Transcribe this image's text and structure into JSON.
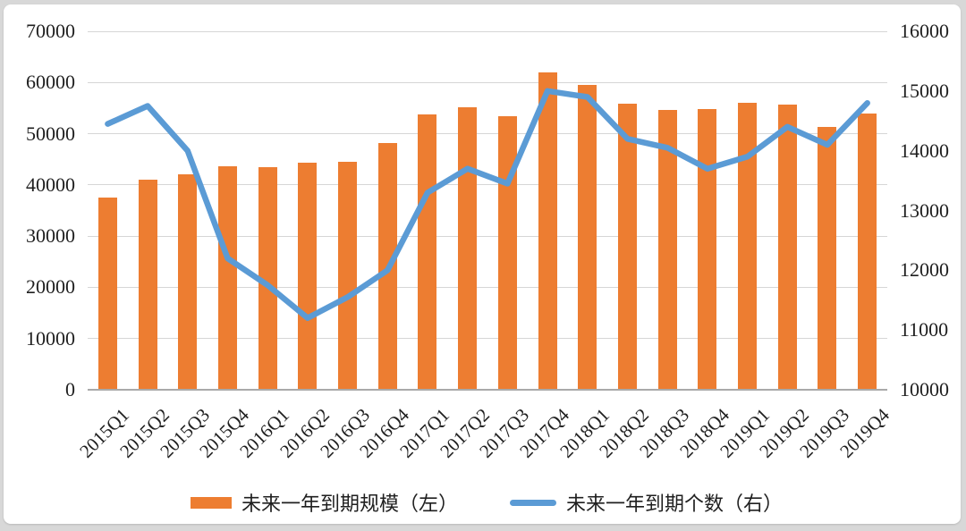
{
  "chart_data": {
    "type": "bar",
    "subtype": "combo-bar-line-dual-axis",
    "title": "",
    "categories": [
      "2015Q1",
      "2015Q2",
      "2015Q3",
      "2015Q4",
      "2016Q1",
      "2016Q2",
      "2016Q3",
      "2016Q4",
      "2017Q1",
      "2017Q2",
      "2017Q3",
      "2017Q4",
      "2018Q1",
      "2018Q2",
      "2018Q3",
      "2018Q4",
      "2019Q1",
      "2019Q2",
      "2019Q3",
      "2019Q4"
    ],
    "series": [
      {
        "name": "未来一年到期规模（左）",
        "type": "bar",
        "axis": "left",
        "values": [
          37500,
          41000,
          42100,
          43600,
          43400,
          44300,
          44600,
          48200,
          53700,
          55200,
          53400,
          61900,
          59500,
          55800,
          54700,
          54800,
          56000,
          55600,
          51400,
          53900
        ]
      },
      {
        "name": "未来一年到期个数（右）",
        "type": "line",
        "axis": "right",
        "values": [
          14450,
          14750,
          14000,
          12200,
          11750,
          11200,
          11550,
          12000,
          13300,
          13700,
          13450,
          15000,
          14900,
          14200,
          14050,
          13700,
          13900,
          14400,
          14100,
          14800
        ]
      }
    ],
    "left_axis": {
      "min": 0,
      "max": 70000,
      "step": 10000,
      "tick_labels": [
        "70000",
        "60000",
        "50000",
        "40000",
        "30000",
        "20000",
        "10000",
        "0"
      ]
    },
    "right_axis": {
      "min": 10000,
      "max": 16000,
      "step": 1000,
      "tick_labels": [
        "16000",
        "15000",
        "14000",
        "13000",
        "12000",
        "11000",
        "10000"
      ]
    },
    "grid": "horizontal, at left-axis steps only",
    "legend_position": "bottom-center",
    "xlabel": "",
    "ylabel": ""
  },
  "legend": {
    "bar_label": "未来一年到期规模（左）",
    "line_label": "未来一年到期个数（右）"
  },
  "colors": {
    "bar": "#ED7D31",
    "line": "#5B9BD5",
    "gridline": "#D6D6D6",
    "axis_line": "#A9A9A9",
    "text": "#1F1F1F",
    "card_bg": "#FFFFFF",
    "frame_bg": "#D8D8D8"
  }
}
